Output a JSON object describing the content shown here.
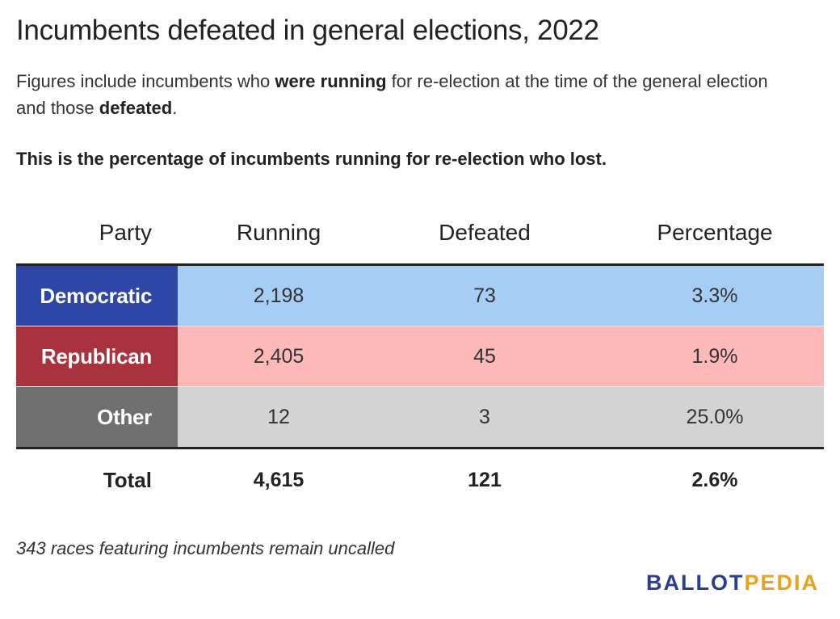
{
  "title": "Incumbents defeated in general elections, 2022",
  "subtitle": {
    "p1": "Figures include incumbents who ",
    "b1": "were running",
    "p2": " for re-election at the time of the general election and those ",
    "b2": "defeated",
    "p3": "."
  },
  "note": "This is the percentage of incumbents running for re-election who lost.",
  "footnote": "343 races featuring incumbents remain uncalled",
  "logo": {
    "part1": "BALLOT",
    "part2": "PEDIA",
    "color1": "#2b3d8f",
    "color2": "#e8a21e"
  },
  "chart_data": {
    "type": "table",
    "columns": [
      "Party",
      "Running",
      "Defeated",
      "Percentage"
    ],
    "rows": [
      {
        "party": "Democratic",
        "running": "2,198",
        "defeated": "73",
        "percentage": "3.3%",
        "label_color": "#2e46a6",
        "row_color": "#a6cdf4"
      },
      {
        "party": "Republican",
        "running": "2,405",
        "defeated": "45",
        "percentage": "1.9%",
        "label_color": "#a8323d",
        "row_color": "#fdb8b8"
      },
      {
        "party": "Other",
        "running": "12",
        "defeated": "3",
        "percentage": "25.0%",
        "label_color": "#6f6f6f",
        "row_color": "#d3d3d3"
      }
    ],
    "total": {
      "label": "Total",
      "running": "4,615",
      "defeated": "121",
      "percentage": "2.6%"
    }
  }
}
